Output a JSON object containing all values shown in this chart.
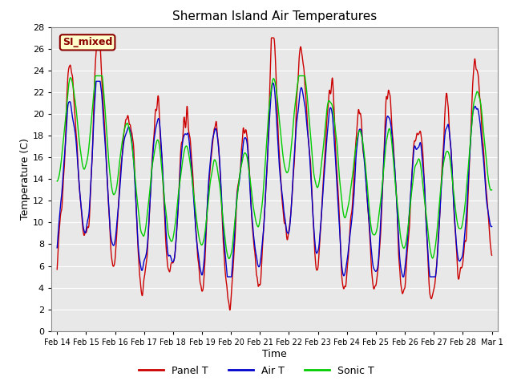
{
  "title": "Sherman Island Air Temperatures",
  "xlabel": "Time",
  "ylabel": "Temperature (C)",
  "ylim": [
    0,
    28
  ],
  "yticks": [
    0,
    2,
    4,
    6,
    8,
    10,
    12,
    14,
    16,
    18,
    20,
    22,
    24,
    26,
    28
  ],
  "bg_color": "#e8e8e8",
  "fig_color": "#ffffff",
  "line_colors": {
    "panel": "#cc0000",
    "air": "#0000cc",
    "sonic": "#00cc00"
  },
  "line_widths": {
    "panel": 1.0,
    "air": 1.0,
    "sonic": 1.0
  },
  "legend_labels": [
    "Panel T",
    "Air T",
    "Sonic T"
  ],
  "annotation_text": "SI_mixed",
  "annotation_bg": "#ffffcc",
  "annotation_border": "#8b0000",
  "annotation_text_color": "#8b0000",
  "xtick_labels": [
    "Feb 14",
    "Feb 15",
    "Feb 16",
    "Feb 17",
    "Feb 18",
    "Feb 19",
    "Feb 20",
    "Feb 21",
    "Feb 22",
    "Feb 23",
    "Feb 24",
    "Feb 25",
    "Feb 26",
    "Feb 27",
    "Feb 28",
    "Mar 1"
  ]
}
